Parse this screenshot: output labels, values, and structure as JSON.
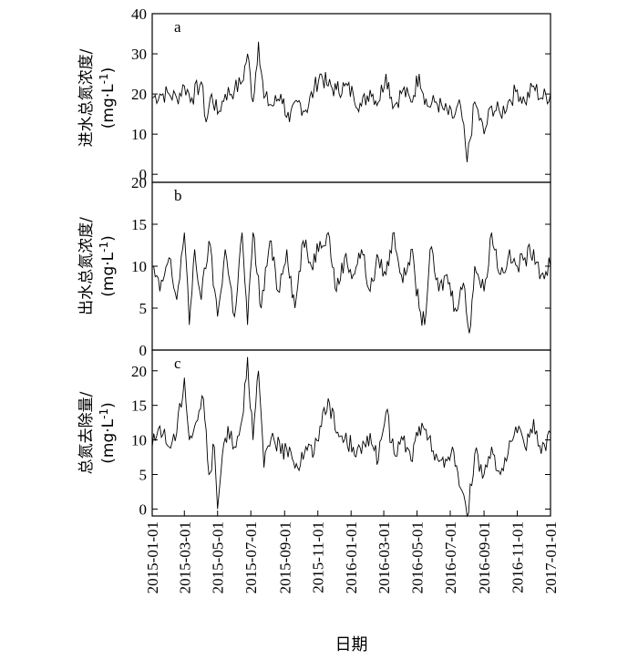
{
  "chart_data": {
    "type": "line",
    "xlabel": "日期",
    "x_range": [
      "2015-01-01",
      "2017-01-01"
    ],
    "x_ticks": [
      "2015-01-01",
      "2015-03-01",
      "2015-05-01",
      "2015-07-01",
      "2015-09-01",
      "2015-11-01",
      "2016-01-01",
      "2016-03-01",
      "2016-05-01",
      "2016-07-01",
      "2016-09-01",
      "2016-11-01",
      "2017-01-01"
    ],
    "panels": [
      {
        "letter": "a",
        "ylabel_line1": "进水总氮浓度/",
        "ylabel_line2": "(mg·L",
        "ylabel_sup": "-1",
        "ylabel_close": ")",
        "ylim": [
          -2,
          40
        ],
        "y_ticks": [
          0,
          10,
          20,
          30,
          40
        ],
        "series": [
          {
            "points": [
              [
                "2015-01-01",
                19
              ],
              [
                "2015-01-15",
                20
              ],
              [
                "2015-02-01",
                20
              ],
              [
                "2015-02-15",
                19
              ],
              [
                "2015-03-01",
                22
              ],
              [
                "2015-03-15",
                19
              ],
              [
                "2015-04-01",
                23
              ],
              [
                "2015-04-10",
                13
              ],
              [
                "2015-04-20",
                20
              ],
              [
                "2015-05-01",
                15
              ],
              [
                "2015-05-15",
                20
              ],
              [
                "2015-06-01",
                21
              ],
              [
                "2015-06-15",
                23
              ],
              [
                "2015-06-25",
                30
              ],
              [
                "2015-07-05",
                18
              ],
              [
                "2015-07-15",
                33
              ],
              [
                "2015-07-25",
                19
              ],
              [
                "2015-08-10",
                17
              ],
              [
                "2015-08-25",
                20
              ],
              [
                "2015-09-10",
                13
              ],
              [
                "2015-09-25",
                18
              ],
              [
                "2015-10-10",
                16
              ],
              [
                "2015-10-25",
                21
              ],
              [
                "2015-11-05",
                25
              ],
              [
                "2015-11-20",
                22
              ],
              [
                "2015-12-05",
                21
              ],
              [
                "2015-12-20",
                22
              ],
              [
                "2016-01-05",
                20
              ],
              [
                "2016-01-20",
                17
              ],
              [
                "2016-02-05",
                21
              ],
              [
                "2016-02-20",
                18
              ],
              [
                "2016-03-05",
                25
              ],
              [
                "2016-03-20",
                17
              ],
              [
                "2016-04-05",
                21
              ],
              [
                "2016-04-20",
                18
              ],
              [
                "2016-05-05",
                25
              ],
              [
                "2016-05-20",
                17
              ],
              [
                "2016-06-05",
                18
              ],
              [
                "2016-06-20",
                16
              ],
              [
                "2016-07-05",
                14
              ],
              [
                "2016-07-20",
                17
              ],
              [
                "2016-08-01",
                3
              ],
              [
                "2016-08-15",
                18
              ],
              [
                "2016-09-01",
                10
              ],
              [
                "2016-09-15",
                17
              ],
              [
                "2016-10-01",
                15
              ],
              [
                "2016-10-15",
                18
              ],
              [
                "2016-11-01",
                21
              ],
              [
                "2016-11-15",
                18
              ],
              [
                "2016-12-01",
                22
              ],
              [
                "2016-12-15",
                19
              ],
              [
                "2017-01-01",
                20
              ]
            ]
          }
        ]
      },
      {
        "letter": "b",
        "ylabel_line1": "出水总氮浓度/",
        "ylabel_line2": "(mg·L",
        "ylabel_sup": "-1",
        "ylabel_close": ")",
        "ylim": [
          0,
          20
        ],
        "y_ticks": [
          0,
          5,
          10,
          15,
          20
        ],
        "series": [
          {
            "points": [
              [
                "2015-01-01",
                10
              ],
              [
                "2015-01-15",
                7
              ],
              [
                "2015-02-01",
                11
              ],
              [
                "2015-02-15",
                6
              ],
              [
                "2015-03-01",
                14
              ],
              [
                "2015-03-10",
                3
              ],
              [
                "2015-03-20",
                12
              ],
              [
                "2015-04-01",
                6
              ],
              [
                "2015-04-15",
                13
              ],
              [
                "2015-05-01",
                4
              ],
              [
                "2015-05-15",
                12
              ],
              [
                "2015-06-01",
                4
              ],
              [
                "2015-06-15",
                14
              ],
              [
                "2015-06-25",
                3
              ],
              [
                "2015-07-05",
                14
              ],
              [
                "2015-07-20",
                5
              ],
              [
                "2015-08-05",
                13
              ],
              [
                "2015-08-20",
                7
              ],
              [
                "2015-09-05",
                12
              ],
              [
                "2015-09-20",
                5
              ],
              [
                "2015-10-05",
                13
              ],
              [
                "2015-10-20",
                10
              ],
              [
                "2015-11-05",
                13
              ],
              [
                "2015-11-20",
                14
              ],
              [
                "2015-12-05",
                7
              ],
              [
                "2015-12-20",
                11
              ],
              [
                "2016-01-05",
                9
              ],
              [
                "2016-01-20",
                12
              ],
              [
                "2016-02-05",
                7
              ],
              [
                "2016-02-20",
                11
              ],
              [
                "2016-03-05",
                9
              ],
              [
                "2016-03-20",
                14
              ],
              [
                "2016-04-05",
                8
              ],
              [
                "2016-04-20",
                12
              ],
              [
                "2016-05-05",
                5
              ],
              [
                "2016-05-15",
                3
              ],
              [
                "2016-05-25",
                12
              ],
              [
                "2016-06-10",
                7
              ],
              [
                "2016-06-25",
                9
              ],
              [
                "2016-07-10",
                5
              ],
              [
                "2016-07-25",
                8
              ],
              [
                "2016-08-05",
                2
              ],
              [
                "2016-08-15",
                10
              ],
              [
                "2016-09-01",
                7
              ],
              [
                "2016-09-15",
                14
              ],
              [
                "2016-10-01",
                9
              ],
              [
                "2016-10-15",
                11
              ],
              [
                "2016-11-01",
                10
              ],
              [
                "2016-11-15",
                11
              ],
              [
                "2016-12-01",
                12
              ],
              [
                "2016-12-15",
                9
              ],
              [
                "2017-01-01",
                10
              ]
            ]
          }
        ]
      },
      {
        "letter": "c",
        "ylabel_line1": "总氮去除量/",
        "ylabel_line2": "(mg·L",
        "ylabel_sup": "-1",
        "ylabel_close": ")",
        "ylim": [
          -1,
          23
        ],
        "y_ticks": [
          0,
          5,
          10,
          15,
          20
        ],
        "series": [
          {
            "points": [
              [
                "2015-01-01",
                9
              ],
              [
                "2015-01-15",
                12
              ],
              [
                "2015-02-01",
                9
              ],
              [
                "2015-02-15",
                11
              ],
              [
                "2015-03-01",
                19
              ],
              [
                "2015-03-10",
                10
              ],
              [
                "2015-03-20",
                12
              ],
              [
                "2015-04-05",
                16
              ],
              [
                "2015-04-15",
                5
              ],
              [
                "2015-04-25",
                9
              ],
              [
                "2015-05-01",
                0
              ],
              [
                "2015-05-10",
                8
              ],
              [
                "2015-05-20",
                12
              ],
              [
                "2015-06-01",
                9
              ],
              [
                "2015-06-15",
                13
              ],
              [
                "2015-06-25",
                22
              ],
              [
                "2015-07-05",
                10
              ],
              [
                "2015-07-15",
                20
              ],
              [
                "2015-07-25",
                6
              ],
              [
                "2015-08-10",
                11
              ],
              [
                "2015-08-25",
                8
              ],
              [
                "2015-09-10",
                9
              ],
              [
                "2015-09-25",
                6
              ],
              [
                "2015-10-10",
                9
              ],
              [
                "2015-10-25",
                8
              ],
              [
                "2015-11-05",
                12
              ],
              [
                "2015-11-20",
                16
              ],
              [
                "2015-12-05",
                11
              ],
              [
                "2015-12-20",
                10
              ],
              [
                "2016-01-05",
                9
              ],
              [
                "2016-01-20",
                8
              ],
              [
                "2016-02-05",
                11
              ],
              [
                "2016-02-20",
                7
              ],
              [
                "2016-03-05",
                14
              ],
              [
                "2016-03-20",
                8
              ],
              [
                "2016-04-05",
                10
              ],
              [
                "2016-04-20",
                7
              ],
              [
                "2016-05-05",
                12
              ],
              [
                "2016-05-20",
                10
              ],
              [
                "2016-06-05",
                8
              ],
              [
                "2016-06-20",
                6
              ],
              [
                "2016-07-05",
                9
              ],
              [
                "2016-07-20",
                3
              ],
              [
                "2016-08-01",
                -1
              ],
              [
                "2016-08-15",
                8
              ],
              [
                "2016-09-01",
                5
              ],
              [
                "2016-09-15",
                9
              ],
              [
                "2016-10-01",
                5
              ],
              [
                "2016-10-15",
                8
              ],
              [
                "2016-11-01",
                11
              ],
              [
                "2016-11-15",
                9
              ],
              [
                "2016-12-01",
                13
              ],
              [
                "2016-12-15",
                8
              ],
              [
                "2017-01-01",
                11
              ]
            ]
          }
        ]
      }
    ]
  }
}
